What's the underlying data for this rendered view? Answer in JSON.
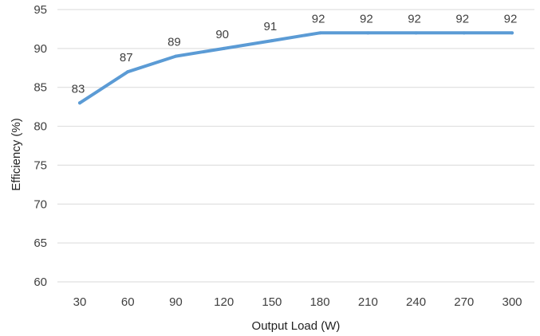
{
  "chart_data": {
    "type": "line",
    "title": "",
    "xlabel": "Output Load (W)",
    "ylabel": "Efficiency (%)",
    "x": [
      30,
      60,
      90,
      120,
      150,
      180,
      210,
      240,
      270,
      300
    ],
    "series": [
      {
        "values": [
          83,
          87,
          89,
          90,
          91,
          92,
          92,
          92,
          92,
          92
        ],
        "color": "#5b9bd5"
      }
    ],
    "ylim": [
      60,
      95
    ],
    "yticks": [
      60,
      65,
      70,
      75,
      80,
      85,
      90,
      95
    ],
    "grid": true,
    "legend": "none",
    "data_labels": true
  }
}
